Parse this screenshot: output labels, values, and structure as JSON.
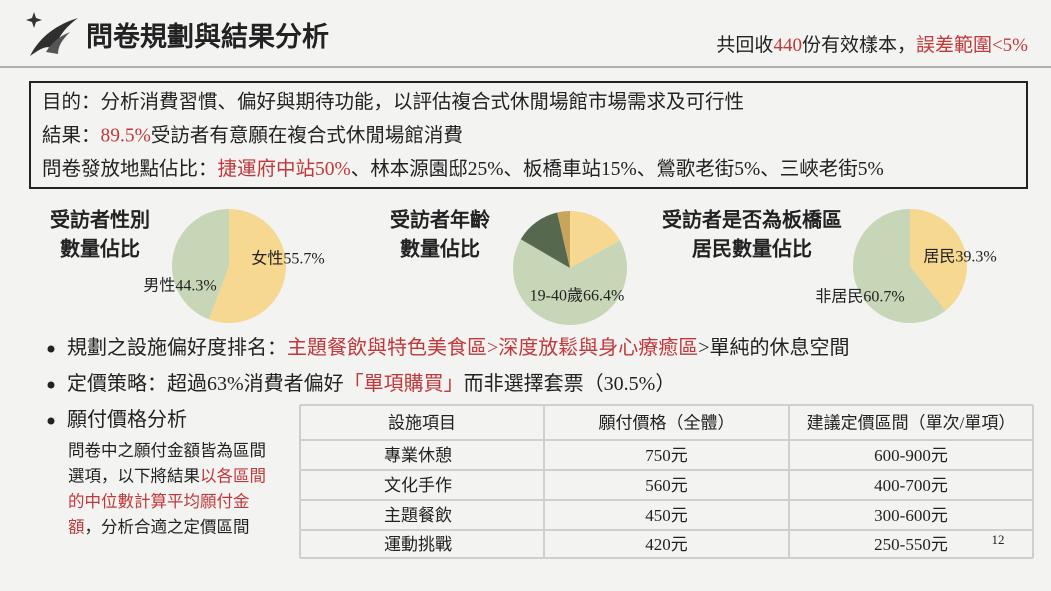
{
  "header": {
    "title": "問卷規劃與結果分析",
    "summary": [
      {
        "text": "共回收"
      },
      {
        "text": "440",
        "highlight": true
      },
      {
        "text": "份有效樣本，"
      },
      {
        "text": "誤差範圍<5%",
        "highlight": true
      }
    ]
  },
  "objectives": [
    [
      {
        "text": "目的：分析消費習慣、偏好與期待功能，以評估複合式休閒場館市場需求及可行性"
      }
    ],
    [
      {
        "text": "結果："
      },
      {
        "text": "89.5%",
        "highlight": true
      },
      {
        "text": "受訪者有意願在複合式休閒場館消費"
      }
    ],
    [
      {
        "text": "問卷發放地點佔比："
      },
      {
        "text": "捷運府中站50%",
        "highlight": true
      },
      {
        "text": "、林本源園邸25%、板橋車站15%、鶯歌老街5%、三峽老街5%"
      }
    ]
  ],
  "chart_data": [
    {
      "type": "pie",
      "title_lines": [
        "受訪者性別",
        "數量佔比"
      ],
      "values": [
        55.7,
        44.3
      ],
      "value_labels": [
        "女性55.7%",
        "男性44.3%"
      ],
      "colors": [
        "#f6d891",
        "#c6d6b6"
      ]
    },
    {
      "type": "pie",
      "title_lines": [
        "受訪者年齡",
        "數量佔比"
      ],
      "values": [
        17,
        66.4,
        13,
        3.6
      ],
      "value_labels": [
        null,
        "19-40歲66.4%",
        null,
        null
      ],
      "colors": [
        "#f6d891",
        "#c6d6b6",
        "#56694f",
        "#c8a55c"
      ]
    },
    {
      "type": "pie",
      "title_lines": [
        "受訪者是否為板橋區",
        "居民數量佔比"
      ],
      "values": [
        39.3,
        60.7
      ],
      "value_labels": [
        "居民39.3%",
        "非居民60.7%"
      ],
      "colors": [
        "#f6d891",
        "#c6d6b6"
      ]
    }
  ],
  "bullets": [
    [
      {
        "text": "規劃之設施偏好度排名："
      },
      {
        "text": "主題餐飲與特色美食區>深度放鬆與身心療癒區",
        "highlight": true
      },
      {
        "text": ">單純的休息空間"
      }
    ],
    [
      {
        "text": "定價策略：超過63%消費者偏好"
      },
      {
        "text": "「單項購買」",
        "highlight": true
      },
      {
        "text": "而非選擇套票（30.5%）"
      }
    ],
    [
      {
        "text": "願付價格分析"
      }
    ]
  ],
  "note_lines": [
    [
      {
        "text": "問卷中之願付金額皆為區間"
      }
    ],
    [
      {
        "text": "選項，以下將結果"
      },
      {
        "text": "以各區間",
        "highlight": true
      }
    ],
    [
      {
        "text": "的中位數計算平均願付金",
        "highlight": true
      }
    ],
    [
      {
        "text": "額",
        "highlight": true
      },
      {
        "text": "，分析合適之定價區間"
      }
    ]
  ],
  "table": {
    "header": [
      "設施項目",
      "願付價格（全體）",
      "建議定價區間（單次/單項）"
    ],
    "rows": [
      [
        "專業休憩",
        "750元",
        "600-900元"
      ],
      [
        "文化手作",
        "560元",
        "400-700元"
      ],
      [
        "主題餐飲",
        "450元",
        "300-600元"
      ],
      [
        "運動挑戰",
        "420元",
        "250-550元"
      ]
    ]
  },
  "page_number": "12"
}
